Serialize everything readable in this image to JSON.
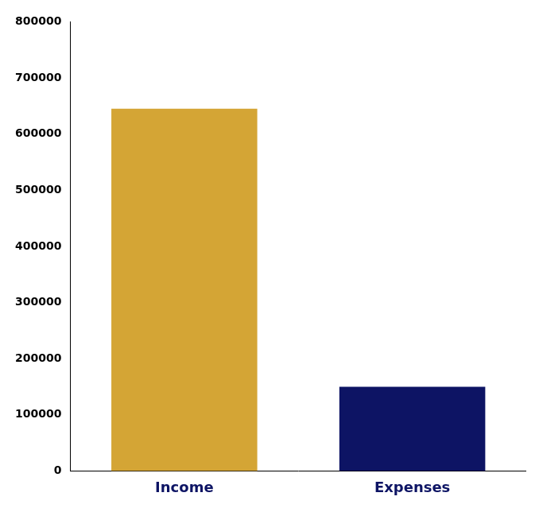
{
  "chart_data": {
    "type": "bar",
    "categories": [
      "Income",
      "Expenses"
    ],
    "values": [
      645000,
      150000
    ],
    "colors": [
      "#D4A535",
      "#0D1464"
    ],
    "ylim": [
      0,
      800000
    ],
    "yticks": [
      0,
      100000,
      200000,
      300000,
      400000,
      500000,
      600000,
      700000,
      800000
    ],
    "grid": false
  }
}
